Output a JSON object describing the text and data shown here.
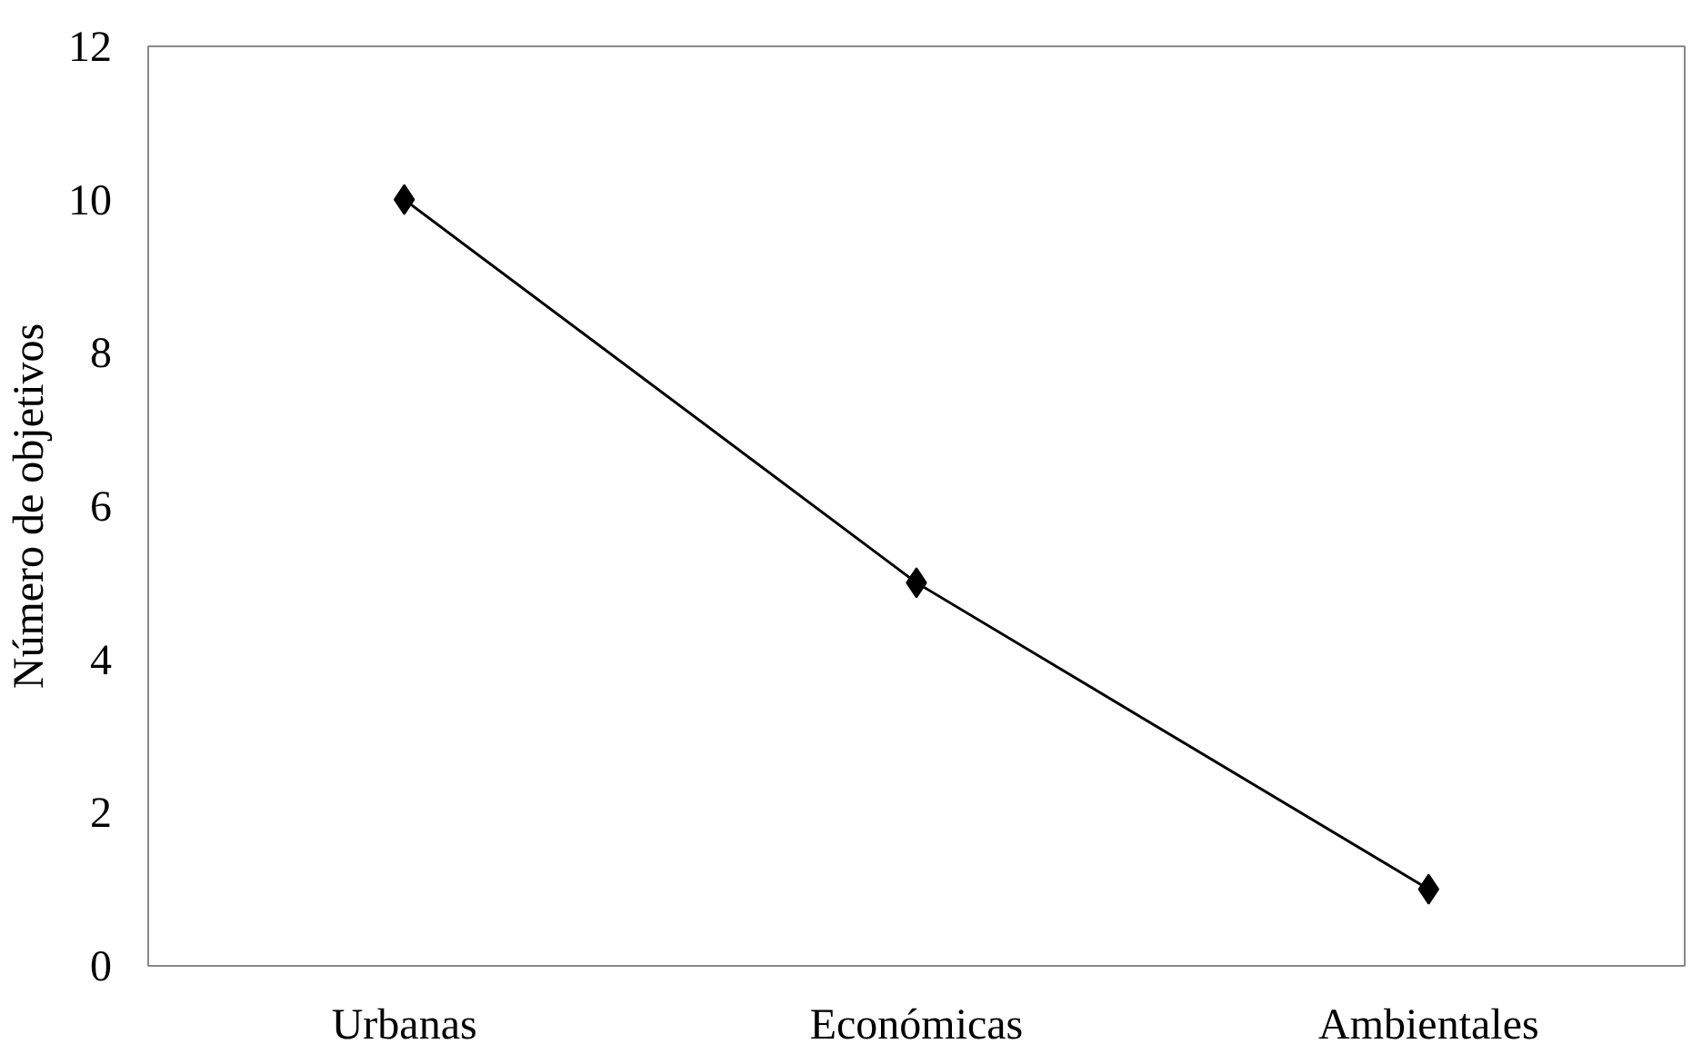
{
  "chart_data": {
    "type": "line",
    "ylabel": "Número de objetivos",
    "categories": [
      "Urbanas",
      "Económicas",
      "Ambientales"
    ],
    "series": [
      {
        "color": "#000000",
        "values": [
          10,
          5,
          1
        ]
      }
    ],
    "ylim": [
      0,
      12
    ],
    "yticks": [
      0,
      2,
      4,
      6,
      8,
      10,
      12
    ],
    "marker": "diamond",
    "line_style": "solid",
    "grid": false
  }
}
